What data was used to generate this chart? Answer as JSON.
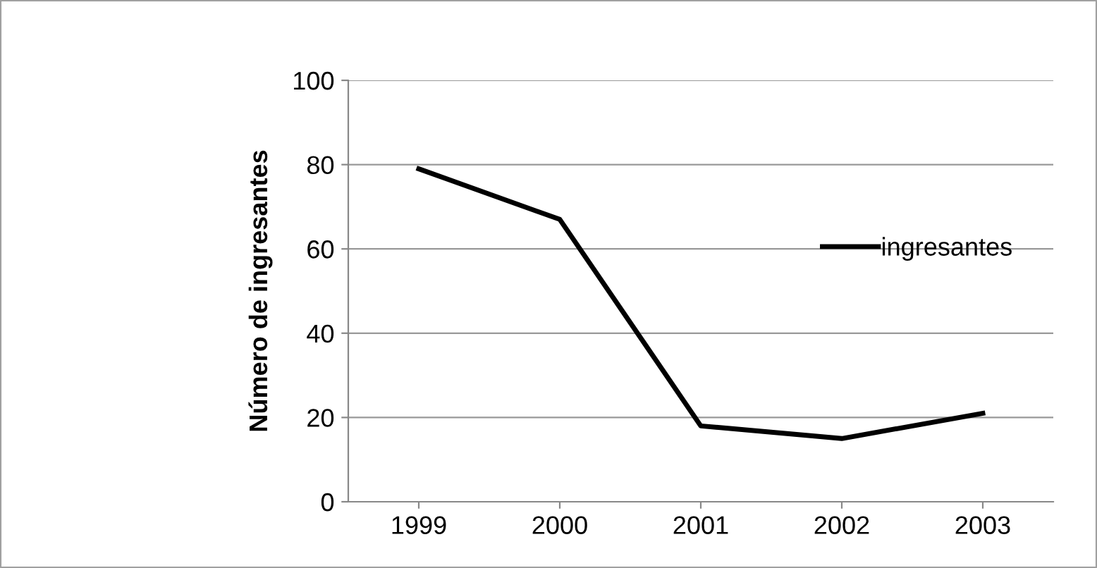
{
  "chart_data": {
    "type": "line",
    "ylabel": "Número de ingresantes",
    "categories": [
      "1999",
      "2000",
      "2001",
      "2002",
      "2003"
    ],
    "series": [
      {
        "name": "ingresantes",
        "color": "#000000",
        "values": [
          79,
          67,
          18,
          15,
          21
        ]
      }
    ],
    "ylim": [
      0,
      100
    ],
    "yticks": [
      0,
      20,
      40,
      60,
      80,
      100
    ],
    "grid": "y",
    "legend": "right",
    "marker": "none",
    "line_style": "solid"
  }
}
